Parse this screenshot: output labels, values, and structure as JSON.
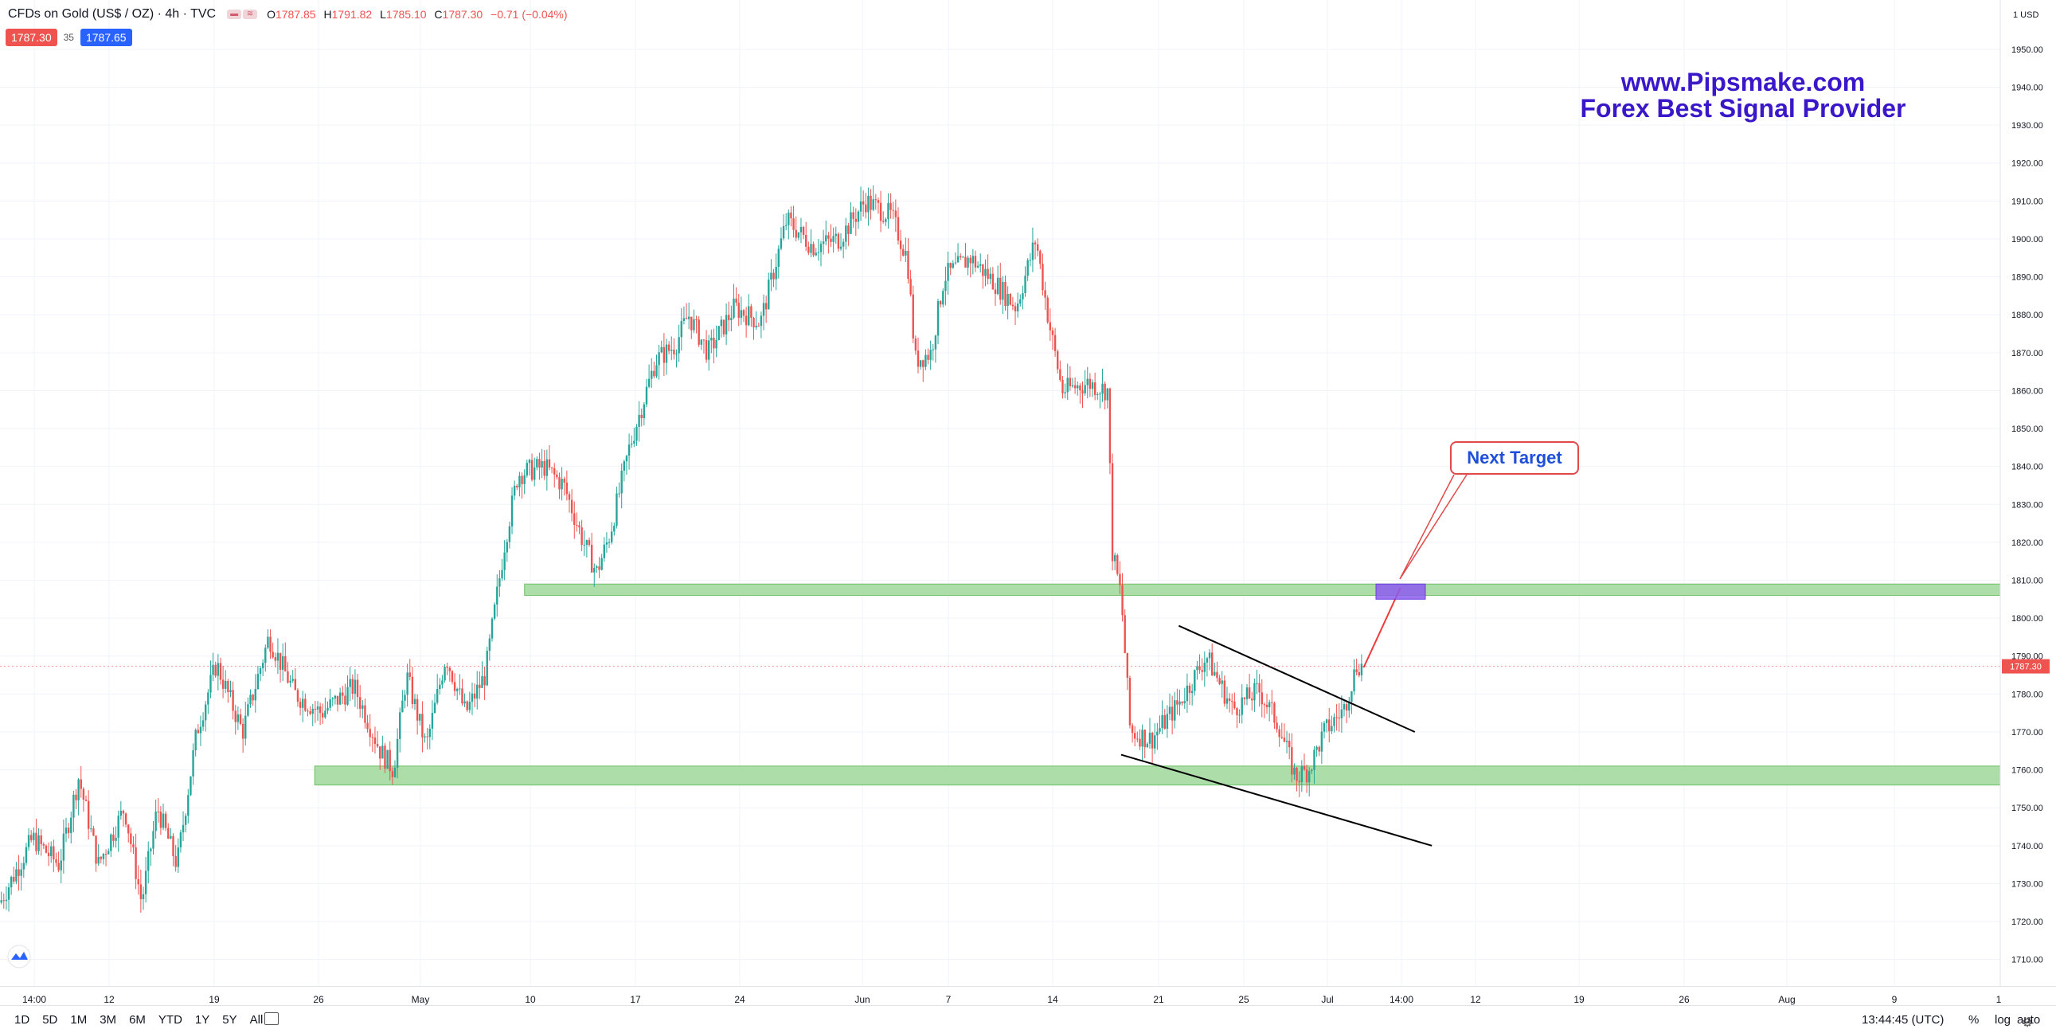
{
  "header": {
    "symbol": "CFDs on Gold (US$ / OZ) · 4h · TVC",
    "ohlc": [
      {
        "label": "O",
        "value": "1787.85"
      },
      {
        "label": "H",
        "value": "1791.82"
      },
      {
        "label": "L",
        "value": "1785.10"
      },
      {
        "label": "C",
        "value": "1787.30"
      },
      {
        "label": "",
        "value": "−0.71 (−0.04%)"
      }
    ],
    "sell_price": "1787.30",
    "spread": "35",
    "buy_price": "1787.65"
  },
  "watermark": {
    "line1": "www.Pipsmake.com",
    "line2": "Forex Best Signal Provider",
    "color": "#3a17c9"
  },
  "annotation": {
    "label": "Next Target",
    "color": "#1f4fd8",
    "border": "#e04a4a"
  },
  "colors": {
    "up": "#26a69a",
    "down": "#ef5350",
    "zone": "#9fd89a",
    "target_box": "#8d5cf0",
    "trend": "#000000"
  },
  "price_axis": {
    "unit_label": "1 USD",
    "ticks": [
      "1950.00",
      "1940.00",
      "1930.00",
      "1920.00",
      "1910.00",
      "1900.00",
      "1890.00",
      "1880.00",
      "1870.00",
      "1860.00",
      "1850.00",
      "1840.00",
      "1830.00",
      "1820.00",
      "1810.00",
      "1800.00",
      "1790.00",
      "1780.00",
      "1770.00",
      "1760.00",
      "1750.00",
      "1740.00",
      "1730.00",
      "1720.00",
      "1710.00"
    ],
    "current_price_label": "1787.30"
  },
  "time_axis": {
    "labels": [
      "14:00",
      "12",
      "19",
      "26",
      "May",
      "10",
      "17",
      "24",
      "Jun",
      "7",
      "14",
      "21",
      "25",
      "Jul",
      "14:00",
      "12",
      "19",
      "26",
      "Aug",
      "9",
      "1"
    ]
  },
  "toolbar": {
    "ranges": [
      "1D",
      "5D",
      "1M",
      "3M",
      "6M",
      "YTD",
      "1Y",
      "5Y",
      "All"
    ],
    "time": "13:44:45 (UTC)",
    "percent": "%",
    "log": "log",
    "auto": "auto"
  },
  "chart_data": {
    "type": "candlestick",
    "instrument": "CFDs on Gold (US$ / OZ)",
    "timeframe": "4h",
    "ylim": [
      1703,
      1963
    ],
    "close_path": [
      [
        0,
        1725
      ],
      [
        25,
        1742
      ],
      [
        45,
        1735
      ],
      [
        60,
        1758
      ],
      [
        75,
        1735
      ],
      [
        95,
        1750
      ],
      [
        108,
        1725
      ],
      [
        120,
        1750
      ],
      [
        135,
        1735
      ],
      [
        150,
        1770
      ],
      [
        165,
        1788
      ],
      [
        185,
        1770
      ],
      [
        205,
        1795
      ],
      [
        225,
        1780
      ],
      [
        245,
        1775
      ],
      [
        270,
        1782
      ],
      [
        290,
        1765
      ],
      [
        300,
        1760
      ],
      [
        310,
        1785
      ],
      [
        325,
        1766
      ],
      [
        340,
        1790
      ],
      [
        355,
        1775
      ],
      [
        370,
        1785
      ],
      [
        385,
        1820
      ],
      [
        395,
        1838
      ],
      [
        415,
        1840
      ],
      [
        430,
        1835
      ],
      [
        445,
        1820
      ],
      [
        455,
        1812
      ],
      [
        465,
        1822
      ],
      [
        480,
        1845
      ],
      [
        500,
        1868
      ],
      [
        515,
        1872
      ],
      [
        525,
        1880
      ],
      [
        540,
        1870
      ],
      [
        560,
        1882
      ],
      [
        580,
        1878
      ],
      [
        600,
        1905
      ],
      [
        620,
        1898
      ],
      [
        640,
        1900
      ],
      [
        660,
        1910
      ],
      [
        680,
        1906
      ],
      [
        692,
        1895
      ],
      [
        698,
        1868
      ],
      [
        710,
        1870
      ],
      [
        720,
        1890
      ],
      [
        740,
        1895
      ],
      [
        760,
        1888
      ],
      [
        775,
        1882
      ],
      [
        790,
        1900
      ],
      [
        800,
        1878
      ],
      [
        810,
        1860
      ],
      [
        830,
        1862
      ],
      [
        845,
        1860
      ],
      [
        848,
        1818
      ],
      [
        855,
        1806
      ],
      [
        862,
        1770
      ],
      [
        878,
        1768
      ],
      [
        900,
        1778
      ],
      [
        920,
        1790
      ],
      [
        940,
        1776
      ],
      [
        960,
        1781
      ],
      [
        975,
        1772
      ],
      [
        988,
        1758
      ],
      [
        998,
        1760
      ],
      [
        1010,
        1770
      ],
      [
        1025,
        1776
      ],
      [
        1035,
        1788
      ],
      [
        1040,
        1787
      ]
    ],
    "zones": [
      {
        "from_x": 400,
        "from_price": 1806,
        "to_price": 1809
      },
      {
        "from_x": 240,
        "from_price": 1756,
        "to_price": 1761
      }
    ],
    "trendlines": [
      {
        "from": [
          899,
          1798
        ],
        "to": [
          1079,
          1770
        ]
      },
      {
        "from": [
          855,
          1764
        ],
        "to": [
          1092,
          1740
        ]
      }
    ],
    "projection": {
      "from": [
        1040,
        1787
      ],
      "to": [
        1068,
        1808
      ]
    },
    "target_box": {
      "price_low": 1805,
      "price_high": 1809
    },
    "current_price": 1787.3
  }
}
